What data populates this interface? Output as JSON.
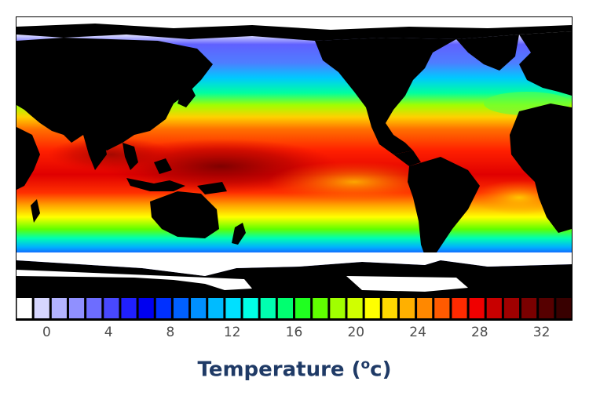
{
  "map": {
    "variable": "sea surface temperature",
    "land_color": "#000000",
    "ice_color": "#ffffff"
  },
  "legend": {
    "title_main": "Temperature (",
    "title_sup": "o",
    "title_unit": "c)",
    "ticks": [
      "0",
      "4",
      "8",
      "12",
      "16",
      "20",
      "24",
      "28",
      "32"
    ],
    "tick_values": [
      0,
      4,
      8,
      12,
      16,
      20,
      24,
      28,
      32
    ],
    "min": -2,
    "max": 34,
    "swatch_colors": [
      "#ffffff",
      "#d6d6ff",
      "#b3b3ff",
      "#9090ff",
      "#6d6dff",
      "#4848ff",
      "#2020ff",
      "#0000f0",
      "#0030ff",
      "#0060ff",
      "#0090ff",
      "#00bbff",
      "#00e0ff",
      "#00ffe6",
      "#00ffb0",
      "#00ff70",
      "#20ff20",
      "#60ff00",
      "#a0ff00",
      "#d0ff00",
      "#ffff00",
      "#ffd800",
      "#ffb000",
      "#ff8800",
      "#ff5a00",
      "#ff2a00",
      "#f00000",
      "#c80000",
      "#a00000",
      "#7a0000",
      "#560000",
      "#380000"
    ]
  }
}
